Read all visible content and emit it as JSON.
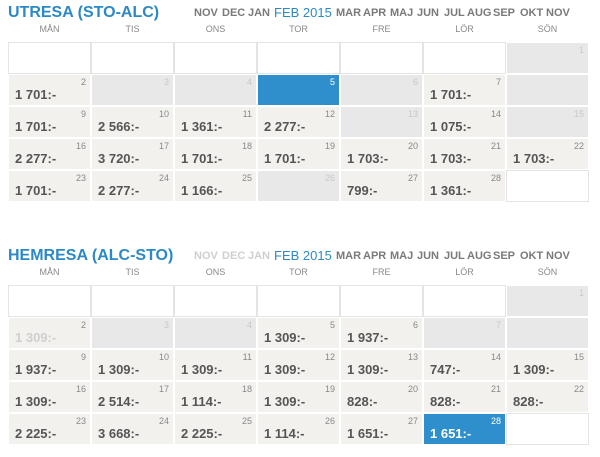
{
  "sections": [
    {
      "title": "UTRESA (STO-ALC)",
      "months": [
        {
          "text": "NOV"
        },
        {
          "text": "DEC"
        },
        {
          "text": "JAN"
        },
        {
          "text": "FEB 2015",
          "active": true
        },
        {
          "text": "MAR"
        },
        {
          "text": "APR"
        },
        {
          "text": "MAJ"
        },
        {
          "text": "JUN"
        },
        {
          "text": "JUL"
        },
        {
          "text": "AUG"
        },
        {
          "text": "SEP"
        },
        {
          "text": "OKT"
        },
        {
          "text": "NOV"
        }
      ],
      "weekdays": [
        "MÅN",
        "TIS",
        "ONS",
        "TOR",
        "FRE",
        "LÖR",
        "SÖN"
      ],
      "weeks": [
        [
          null,
          null,
          null,
          null,
          null,
          null,
          {
            "day": 1,
            "closed": true
          }
        ],
        [
          {
            "day": 2,
            "price": "1 701:-"
          },
          {
            "day": 3,
            "closed": true
          },
          {
            "day": 4,
            "closed": true
          },
          {
            "day": 5,
            "selected": true
          },
          {
            "day": 6,
            "closed": true
          },
          {
            "day": 7,
            "price": "1 701:-"
          },
          {
            "closed": true
          }
        ],
        [
          {
            "day": 9,
            "price": "1 701:-"
          },
          {
            "day": 10,
            "price": "2 566:-"
          },
          {
            "day": 11,
            "price": "1 361:-"
          },
          {
            "day": 12,
            "price": "2 277:-"
          },
          {
            "day": 13,
            "closed": true
          },
          {
            "day": 14,
            "price": "1 075:-"
          },
          {
            "day": 15,
            "closed": true
          }
        ],
        [
          {
            "day": 16,
            "price": "2 277:-"
          },
          {
            "day": 17,
            "price": "3 720:-"
          },
          {
            "day": 18,
            "price": "1 701:-"
          },
          {
            "day": 19,
            "price": "1 701:-"
          },
          {
            "day": 20,
            "price": "1 703:-"
          },
          {
            "day": 21,
            "price": "1 703:-"
          },
          {
            "day": 22,
            "price": "1 703:-"
          }
        ],
        [
          {
            "day": 23,
            "price": "1 701:-"
          },
          {
            "day": 24,
            "price": "2 277:-"
          },
          {
            "day": 25,
            "price": "1 166:-"
          },
          {
            "day": 26,
            "closed": true
          },
          {
            "day": 27,
            "price": "799:-"
          },
          {
            "day": 28,
            "price": "1 361:-"
          },
          null
        ]
      ]
    },
    {
      "title": "HEMRESA (ALC-STO)",
      "months": [
        {
          "text": "NOV",
          "muted": true
        },
        {
          "text": "DEC",
          "muted": true
        },
        {
          "text": "JAN",
          "muted": true
        },
        {
          "text": "FEB 2015",
          "active": true
        },
        {
          "text": "MAR"
        },
        {
          "text": "APR"
        },
        {
          "text": "MAJ"
        },
        {
          "text": "JUN"
        },
        {
          "text": "JUL"
        },
        {
          "text": "AUG"
        },
        {
          "text": "SEP"
        },
        {
          "text": "OKT"
        },
        {
          "text": "NOV"
        }
      ],
      "weekdays": [
        "MÅN",
        "TIS",
        "ONS",
        "TOR",
        "FRE",
        "LÖR",
        "SÖN"
      ],
      "weeks": [
        [
          null,
          null,
          null,
          null,
          null,
          null,
          {
            "day": 1,
            "closed": true
          }
        ],
        [
          {
            "day": 2,
            "price": "1 309:-",
            "muted": true
          },
          {
            "day": 3,
            "closed": true
          },
          {
            "day": 4,
            "closed": true
          },
          {
            "day": 5,
            "price": "1 309:-"
          },
          {
            "day": 6,
            "price": "1 937:-"
          },
          {
            "day": 7,
            "closed": true
          },
          {
            "closed": true
          }
        ],
        [
          {
            "day": 9,
            "price": "1 937:-"
          },
          {
            "day": 10,
            "price": "1 309:-"
          },
          {
            "day": 11,
            "price": "1 309:-"
          },
          {
            "day": 12,
            "price": "1 309:-"
          },
          {
            "day": 13,
            "price": "1 309:-"
          },
          {
            "day": 14,
            "price": "747:-"
          },
          {
            "day": 15,
            "price": "1 309:-"
          }
        ],
        [
          {
            "day": 16,
            "price": "1 309:-"
          },
          {
            "day": 17,
            "price": "2 514:-"
          },
          {
            "day": 18,
            "price": "1 114:-"
          },
          {
            "day": 19,
            "price": "1 309:-"
          },
          {
            "day": 20,
            "price": "828:-"
          },
          {
            "day": 21,
            "price": "828:-"
          },
          {
            "day": 22,
            "price": "828:-"
          }
        ],
        [
          {
            "day": 23,
            "price": "2 225:-"
          },
          {
            "day": 24,
            "price": "3 668:-"
          },
          {
            "day": 25,
            "price": "2 225:-"
          },
          {
            "day": 26,
            "price": "1 114:-"
          },
          {
            "day": 27,
            "price": "1 651:-"
          },
          {
            "day": 28,
            "price": "1 651:-",
            "selected": true
          },
          null
        ]
      ]
    }
  ]
}
